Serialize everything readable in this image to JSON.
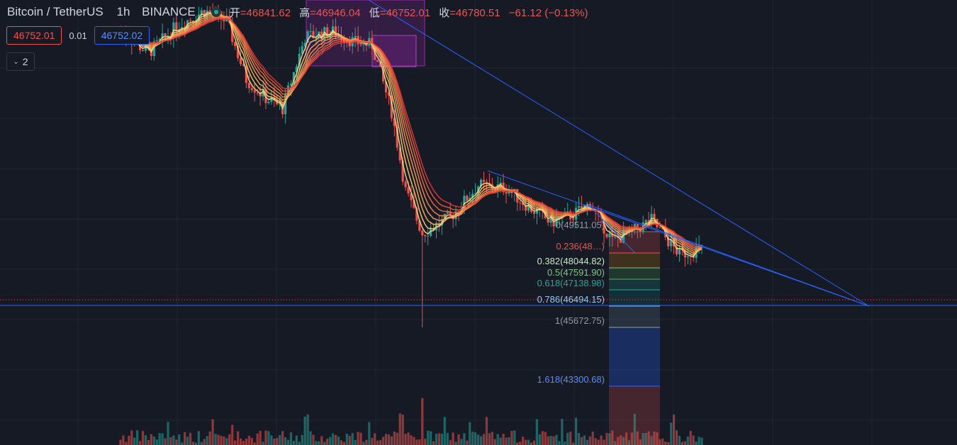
{
  "header": {
    "symbol": "Bitcoin / TetherUS",
    "interval": "1h",
    "exchange": "BINANCE",
    "ohlc": [
      {
        "key": "开",
        "value": "=46841.62"
      },
      {
        "key": "高",
        "value": "=46946.04"
      },
      {
        "key": "低",
        "value": "=46752.01"
      },
      {
        "key": "收",
        "value": "=46780.51"
      }
    ],
    "change": "−61.12 (−0.13%)"
  },
  "trade": {
    "sell_price": "46752.01",
    "spread": "0.01",
    "buy_price": "46752.02"
  },
  "indicators": {
    "collapsed_count": "2"
  },
  "colors": {
    "background": "#161a25",
    "up": "#26a69a",
    "down": "#ef5350",
    "trendline": "#2962ff",
    "ribbon_fast": "#ffe082",
    "ribbon_slow": "#e53935"
  },
  "chart_data": {
    "type": "candlestick",
    "price_range": [
      43000,
      51400
    ],
    "price_path": [
      {
        "t": 0,
        "price": 50800
      },
      {
        "t": 10,
        "price": 50400
      },
      {
        "t": 20,
        "price": 50900
      },
      {
        "t": 30,
        "price": 51200
      },
      {
        "t": 38,
        "price": 51000
      },
      {
        "t": 45,
        "price": 49900
      },
      {
        "t": 52,
        "price": 49550
      },
      {
        "t": 58,
        "price": 49350
      },
      {
        "t": 66,
        "price": 50700
      },
      {
        "t": 76,
        "price": 50800
      },
      {
        "t": 84,
        "price": 50600
      },
      {
        "t": 90,
        "price": 50550
      },
      {
        "t": 97,
        "price": 49300
      },
      {
        "t": 102,
        "price": 47800
      },
      {
        "t": 108,
        "price": 47000
      },
      {
        "t": 118,
        "price": 47300
      },
      {
        "t": 128,
        "price": 47900
      },
      {
        "t": 138,
        "price": 47850
      },
      {
        "t": 146,
        "price": 47500
      },
      {
        "t": 154,
        "price": 47200
      },
      {
        "t": 162,
        "price": 47350
      },
      {
        "t": 168,
        "price": 47550
      },
      {
        "t": 176,
        "price": 46850
      },
      {
        "t": 184,
        "price": 47050
      },
      {
        "t": 190,
        "price": 47250
      },
      {
        "t": 196,
        "price": 46850
      },
      {
        "t": 200,
        "price": 46600
      },
      {
        "t": 208,
        "price": 46700
      }
    ],
    "fibonacci": [
      {
        "level": "0(49511.05)"
      },
      {
        "level": "0.236(48…)"
      },
      {
        "level": "0.382(48044.82)"
      },
      {
        "level": "0.5(47591.90)"
      },
      {
        "level": "0.618(47138.98)"
      },
      {
        "level": "0.786(46494.15)"
      },
      {
        "level": "1(45672.75)"
      },
      {
        "level": "1.618(43300.68)"
      }
    ]
  }
}
